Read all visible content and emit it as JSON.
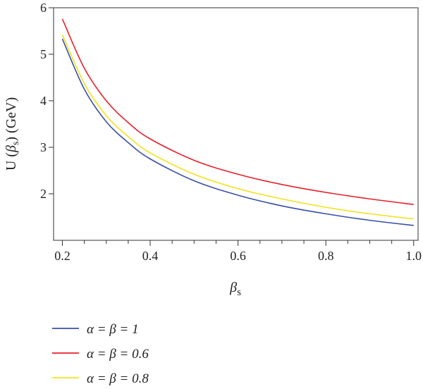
{
  "chart_data": {
    "type": "line",
    "title": "",
    "xlabel": "β",
    "xlabel_sub": "s",
    "ylabel_prefix": "U (",
    "ylabel_beta": "β",
    "ylabel_sub": "s",
    "ylabel_suffix": ") (GeV)",
    "xlim": [
      0.18,
      1.01
    ],
    "ylim": [
      1.0,
      6.0
    ],
    "x_major_ticks": [
      0.2,
      0.4,
      0.6,
      0.8,
      1.0
    ],
    "x_major_tick_labels": [
      "0.2",
      "0.4",
      "0.6",
      "0.8",
      "1.0"
    ],
    "x_minor_ticks": [
      0.25,
      0.3,
      0.35,
      0.45,
      0.5,
      0.55,
      0.65,
      0.7,
      0.75,
      0.85,
      0.9,
      0.95
    ],
    "y_ticks": [
      2,
      3,
      4,
      5,
      6
    ],
    "y_tick_labels": [
      "2",
      "3",
      "4",
      "5",
      "6"
    ],
    "grid": false,
    "legend_position": "bottom-left, below plot",
    "series": [
      {
        "name": "α = β = 1",
        "color": "#3b4fa8",
        "x": [
          0.2,
          0.25,
          0.3,
          0.35,
          0.4,
          0.5,
          0.6,
          0.7,
          0.8,
          0.9,
          1.0
        ],
        "values": [
          5.33,
          4.25,
          3.55,
          3.1,
          2.75,
          2.28,
          1.97,
          1.74,
          1.57,
          1.43,
          1.32
        ]
      },
      {
        "name": "α = β = 0.6",
        "color": "#e8202a",
        "x": [
          0.2,
          0.25,
          0.3,
          0.35,
          0.4,
          0.5,
          0.6,
          0.7,
          0.8,
          0.9,
          1.0
        ],
        "values": [
          5.76,
          4.7,
          4.0,
          3.53,
          3.18,
          2.72,
          2.42,
          2.2,
          2.03,
          1.89,
          1.77
        ]
      },
      {
        "name": "α = β = 0.8",
        "color": "#f2e21b",
        "x": [
          0.2,
          0.25,
          0.3,
          0.35,
          0.4,
          0.5,
          0.6,
          0.7,
          0.8,
          0.9,
          1.0
        ],
        "values": [
          5.42,
          4.37,
          3.68,
          3.23,
          2.88,
          2.42,
          2.11,
          1.89,
          1.71,
          1.57,
          1.46
        ]
      }
    ]
  }
}
